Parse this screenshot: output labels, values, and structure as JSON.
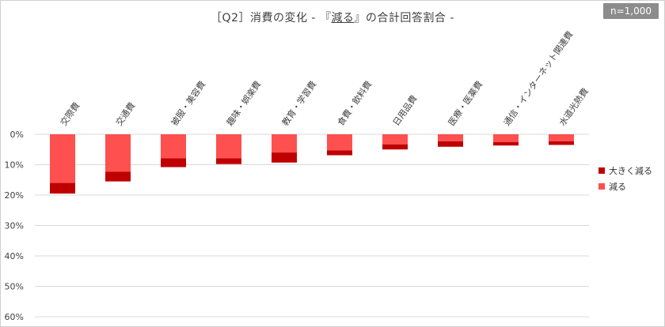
{
  "header": {
    "title_prefix": "［Q2］消費の変化 - 『",
    "title_highlight": "減る",
    "title_suffix": "』の合計回答割合 -",
    "sample_badge": "n=1,000"
  },
  "colors": {
    "greatly_decrease": "#c00000",
    "decrease": "#ff5050",
    "gridline": "#d9d9d9",
    "text": "#404040"
  },
  "chart_data": {
    "type": "bar",
    "stacked": true,
    "orientation": "vertical-downward",
    "categories": [
      "交際費",
      "交通費",
      "被服・美容費",
      "趣味・娯楽費",
      "教育・学習費",
      "食費・飲料費",
      "日用品費",
      "医療・医薬費",
      "通信・インターネット関連費",
      "水道光熱費"
    ],
    "series": [
      {
        "name": "減る",
        "color": "#ff5050",
        "values": [
          16.0,
          12.3,
          7.9,
          7.9,
          6.0,
          5.3,
          3.3,
          2.3,
          2.6,
          2.3
        ]
      },
      {
        "name": "大きく減る",
        "color": "#c00000",
        "values": [
          3.5,
          3.2,
          2.9,
          1.9,
          3.3,
          1.6,
          1.7,
          1.8,
          1.1,
          1.2
        ]
      }
    ],
    "y_ticks": [
      "0%",
      "10%",
      "20%",
      "30%",
      "40%",
      "50%",
      "60%"
    ],
    "ylim": [
      0,
      60
    ],
    "grid": true,
    "legend": [
      {
        "label": "大きく減る",
        "color": "#c00000"
      },
      {
        "label": "減る",
        "color": "#ff5050"
      }
    ],
    "legend_position": "right"
  }
}
